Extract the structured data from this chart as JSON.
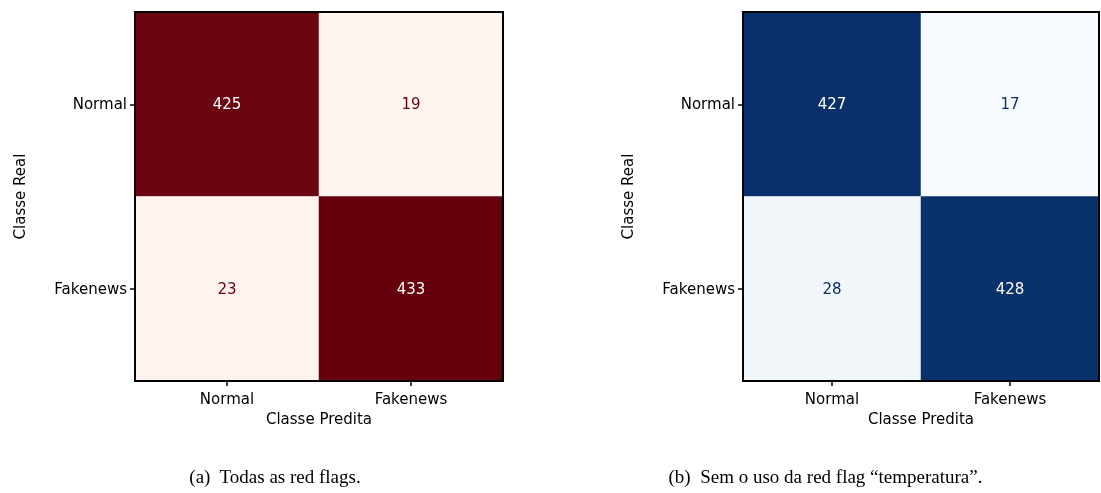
{
  "chart_data": [
    {
      "type": "heatmap",
      "categories": [
        "Normal",
        "Fakenews"
      ],
      "y_categories": [
        "Normal",
        "Fakenews"
      ],
      "cells": [
        [
          425,
          19
        ],
        [
          23,
          433
        ]
      ],
      "xlabel": "Classe Predita",
      "ylabel": "Classe Real",
      "annotations": [
        "(a)  Todas as red flags."
      ],
      "colors": [
        "#fff5f0",
        "#67000d"
      ],
      "data_labels": true
    },
    {
      "type": "heatmap",
      "categories": [
        "Normal",
        "Fakenews"
      ],
      "y_categories": [
        "Normal",
        "Fakenews"
      ],
      "cells": [
        [
          427,
          17
        ],
        [
          28,
          428
        ]
      ],
      "xlabel": "Classe Predita",
      "ylabel": "Classe Real",
      "annotations": [
        "(b)  Sem o uso da red flag “temperatura”."
      ],
      "colors": [
        "#f7fbff",
        "#08306b"
      ],
      "data_labels": true
    }
  ]
}
